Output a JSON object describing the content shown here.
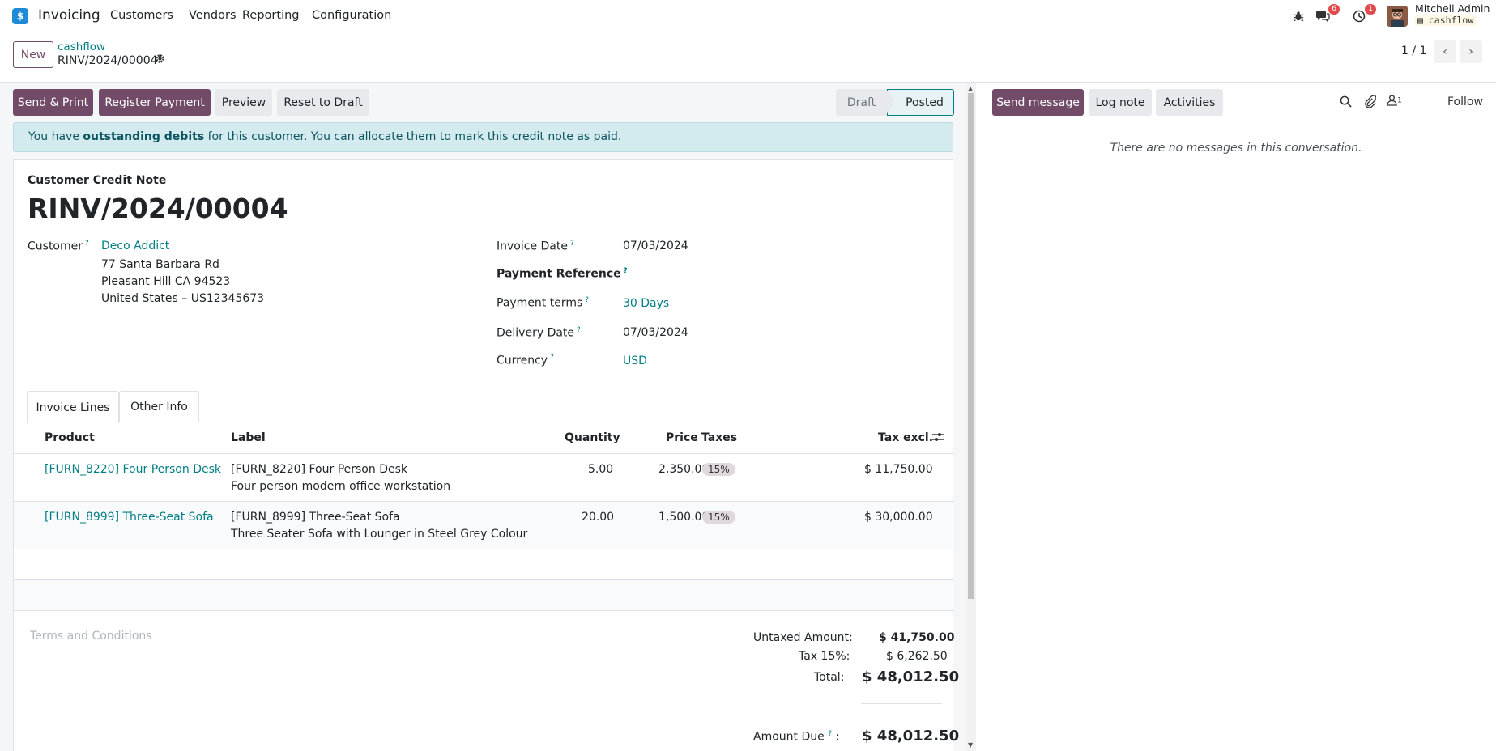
{
  "nav": {
    "app_icon": "$",
    "app_name": "Invoicing",
    "menu": [
      "Customers",
      "Vendors",
      "Reporting",
      "Configuration"
    ],
    "messages_count": "6",
    "activities_count": "1",
    "user_name": "Mitchell Admin",
    "db_name": "cashflow"
  },
  "control": {
    "new_label": "New",
    "breadcrumb_parent": "cashflow",
    "breadcrumb_current": "RINV/2024/00004",
    "pager": "1 / 1"
  },
  "actions": {
    "send_print": "Send & Print",
    "register_payment": "Register Payment",
    "preview": "Preview",
    "reset_draft": "Reset to Draft"
  },
  "status": {
    "draft": "Draft",
    "posted": "Posted"
  },
  "alert": {
    "prefix": "You have ",
    "bold": "outstanding debits",
    "suffix": " for this customer. You can allocate them to mark this credit note as paid."
  },
  "form": {
    "doc_type": "Customer Credit Note",
    "number": "RINV/2024/00004",
    "customer_label": "Customer",
    "customer_name": "Deco Addict",
    "address_line1": "77 Santa Barbara Rd",
    "address_line2": "Pleasant Hill CA 94523",
    "address_line3": "United States – US12345673",
    "invoice_date_label": "Invoice Date",
    "invoice_date": "07/03/2024",
    "payment_ref_label": "Payment Reference",
    "payment_terms_label": "Payment terms",
    "payment_terms": "30 Days",
    "delivery_date_label": "Delivery Date",
    "delivery_date": "07/03/2024",
    "currency_label": "Currency",
    "currency": "USD",
    "help_mark": "?"
  },
  "tabs": [
    "Invoice Lines",
    "Other Info"
  ],
  "table": {
    "headers": [
      "Product",
      "Label",
      "Quantity",
      "Price",
      "Taxes",
      "Tax excl."
    ],
    "rows": [
      {
        "product": "[FURN_8220] Four Person Desk",
        "label1": "[FURN_8220] Four Person Desk",
        "label2": "Four person modern office workstation",
        "quantity": "5.00",
        "price": "2,350.00",
        "tax": "15%",
        "subtotal": "$ 11,750.00"
      },
      {
        "product": "[FURN_8999] Three-Seat Sofa",
        "label1": "[FURN_8999] Three-Seat Sofa",
        "label2": "Three Seater Sofa with Lounger in Steel Grey Colour",
        "quantity": "20.00",
        "price": "1,500.00",
        "tax": "15%",
        "subtotal": "$ 30,000.00"
      }
    ]
  },
  "terms_placeholder": "Terms and Conditions",
  "totals": {
    "untaxed_label": "Untaxed Amount:",
    "untaxed": "$ 41,750.00",
    "tax_label": "Tax 15%:",
    "tax": "$ 6,262.50",
    "total_label": "Total:",
    "total": "$ 48,012.50",
    "due_label": "Amount Due",
    "due": "$ 48,012.50"
  },
  "chatter": {
    "send_message": "Send message",
    "log_note": "Log note",
    "activities": "Activities",
    "followers_count": "1",
    "follow": "Follow",
    "empty": "There are no messages in this conversation."
  },
  "colors": {
    "primary": "#714B67",
    "link": "#017e84",
    "alert_bg": "#d3ebee"
  }
}
